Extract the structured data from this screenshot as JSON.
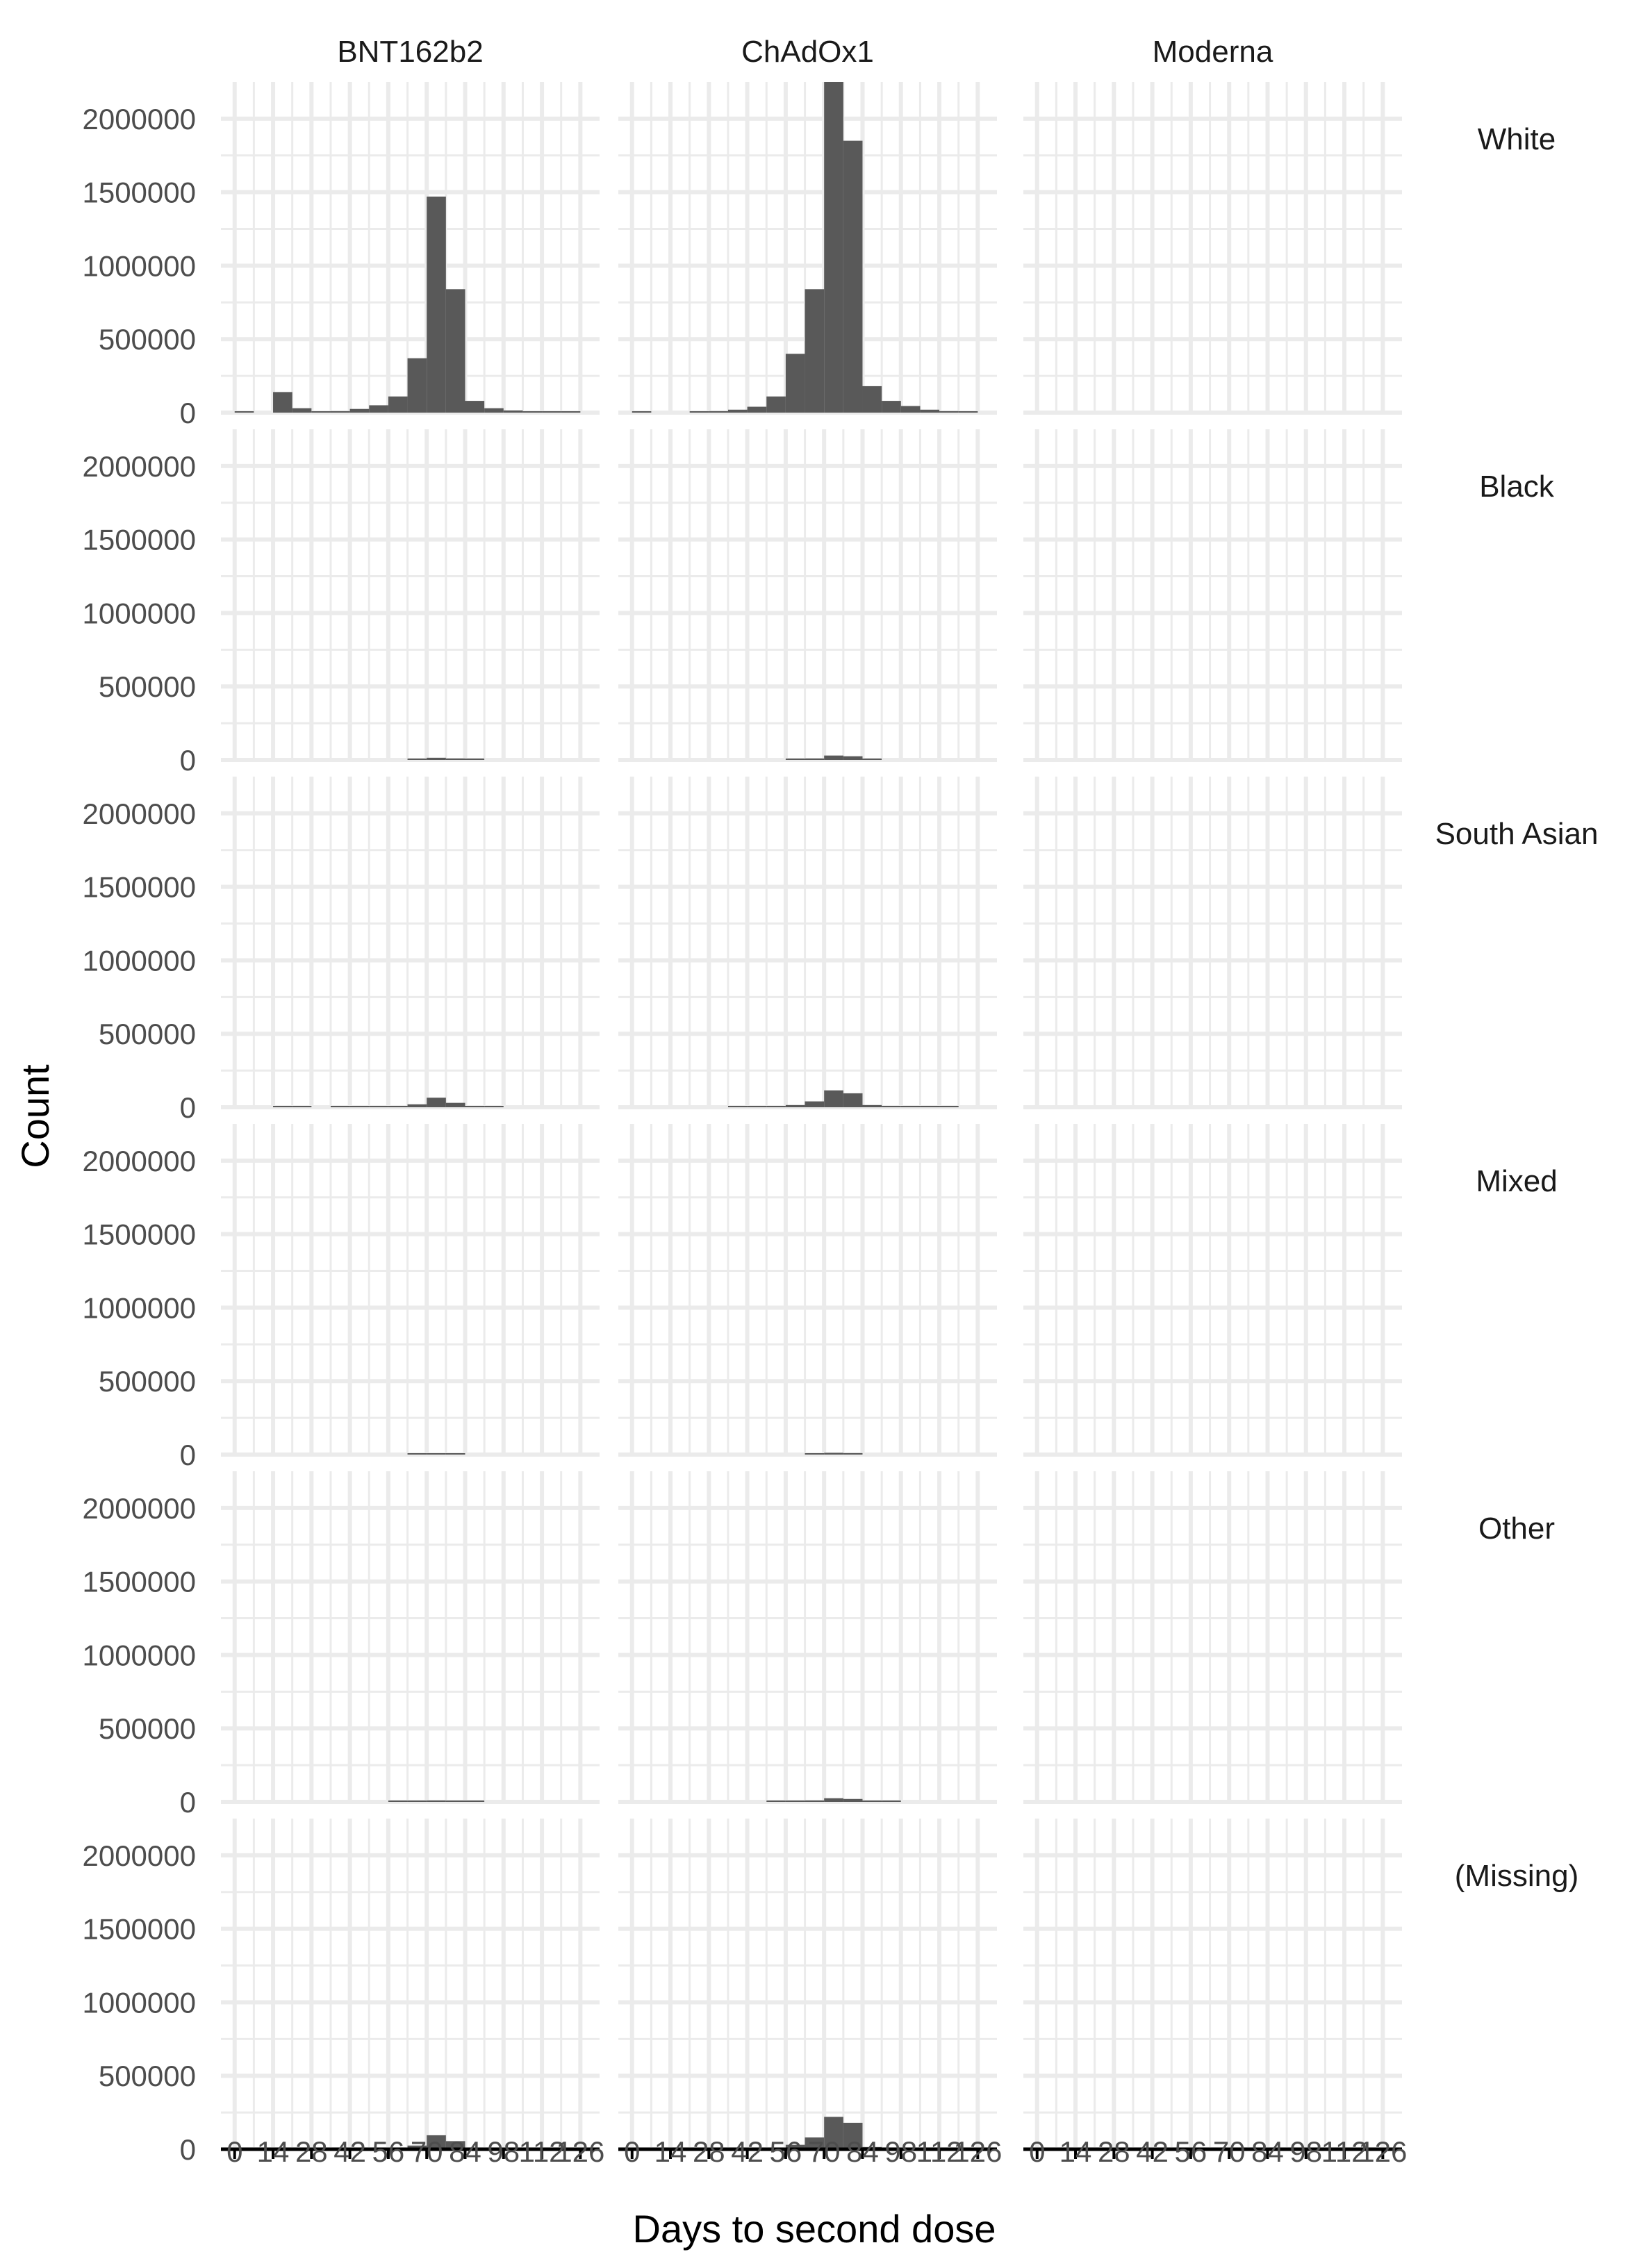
{
  "chart_data": {
    "type": "bar",
    "title": "",
    "xlabel": "Days to second dose",
    "ylabel": "Count",
    "ylim": [
      0,
      2250000
    ],
    "xlim": [
      -5,
      133
    ],
    "bin_width": 7,
    "x_ticks": [
      "0",
      "14",
      "28",
      "42",
      "56",
      "70",
      "84",
      "98",
      "112",
      "126"
    ],
    "y_ticks": [
      "0",
      "500000",
      "1000000",
      "1500000",
      "2000000"
    ],
    "grid": true,
    "colors": {
      "bar": "#595959",
      "grid": "#ebebeb",
      "axis": "#000000"
    },
    "columns": [
      "BNT162b2",
      "ChAdOx1",
      "Moderna"
    ],
    "rows": [
      "White",
      "Black",
      "South Asian",
      "Mixed",
      "Other",
      "(Missing)"
    ],
    "bin_starts": [
      0,
      7,
      14,
      21,
      28,
      35,
      42,
      49,
      56,
      63,
      70,
      77,
      84,
      91,
      98,
      105,
      112,
      119
    ],
    "panels": [
      {
        "row": "White",
        "column": "BNT162b2",
        "values": [
          3000,
          0,
          140000,
          30000,
          3000,
          10000,
          25000,
          50000,
          110000,
          370000,
          1470000,
          840000,
          80000,
          30000,
          15000,
          8000,
          5000,
          3000
        ]
      },
      {
        "row": "White",
        "column": "ChAdOx1",
        "values": [
          3000,
          0,
          0,
          3000,
          10000,
          20000,
          40000,
          110000,
          400000,
          840000,
          2250000,
          1850000,
          180000,
          80000,
          45000,
          20000,
          10000,
          5000
        ]
      },
      {
        "row": "White",
        "column": "Moderna",
        "values": []
      },
      {
        "row": "Black",
        "column": "BNT162b2",
        "values": [
          0,
          0,
          0,
          0,
          0,
          0,
          0,
          0,
          0,
          5000,
          15000,
          10000,
          1000,
          0,
          0,
          0,
          0,
          0
        ]
      },
      {
        "row": "Black",
        "column": "ChAdOx1",
        "values": [
          0,
          0,
          0,
          0,
          0,
          0,
          0,
          0,
          2000,
          10000,
          30000,
          25000,
          3000,
          0,
          0,
          0,
          0,
          0
        ]
      },
      {
        "row": "Black",
        "column": "Moderna",
        "values": []
      },
      {
        "row": "South Asian",
        "column": "BNT162b2",
        "values": [
          0,
          0,
          3000,
          2000,
          0,
          2000,
          2000,
          3000,
          5000,
          20000,
          65000,
          30000,
          3000,
          1000,
          0,
          0,
          0,
          0
        ]
      },
      {
        "row": "South Asian",
        "column": "ChAdOx1",
        "values": [
          0,
          0,
          0,
          0,
          0,
          2000,
          3000,
          5000,
          15000,
          40000,
          115000,
          95000,
          15000,
          5000,
          3000,
          2000,
          1000,
          0
        ]
      },
      {
        "row": "South Asian",
        "column": "Moderna",
        "values": []
      },
      {
        "row": "Mixed",
        "column": "BNT162b2",
        "values": [
          0,
          0,
          0,
          0,
          0,
          0,
          0,
          0,
          0,
          2000,
          5000,
          3000,
          0,
          0,
          0,
          0,
          0,
          0
        ]
      },
      {
        "row": "Mixed",
        "column": "ChAdOx1",
        "values": [
          0,
          0,
          0,
          0,
          0,
          0,
          0,
          0,
          0,
          3000,
          12000,
          10000,
          0,
          0,
          0,
          0,
          0,
          0
        ]
      },
      {
        "row": "Mixed",
        "column": "Moderna",
        "values": []
      },
      {
        "row": "Other",
        "column": "BNT162b2",
        "values": [
          0,
          0,
          0,
          0,
          0,
          0,
          0,
          0,
          1000,
          3000,
          10000,
          6000,
          1000,
          0,
          0,
          0,
          0,
          0
        ]
      },
      {
        "row": "Other",
        "column": "ChAdOx1",
        "values": [
          0,
          0,
          0,
          0,
          0,
          0,
          0,
          1000,
          3000,
          10000,
          25000,
          20000,
          3000,
          1000,
          0,
          0,
          0,
          0
        ]
      },
      {
        "row": "Other",
        "column": "Moderna",
        "values": []
      },
      {
        "row": "(Missing)",
        "column": "BNT162b2",
        "values": [
          0,
          0,
          0,
          0,
          0,
          0,
          0,
          2000,
          5000,
          25000,
          95000,
          55000,
          5000,
          1000,
          0,
          0,
          0,
          0
        ]
      },
      {
        "row": "(Missing)",
        "column": "ChAdOx1",
        "values": [
          0,
          0,
          0,
          0,
          0,
          0,
          1000,
          5000,
          30000,
          80000,
          220000,
          180000,
          15000,
          3000,
          1000,
          0,
          0,
          0
        ]
      },
      {
        "row": "(Missing)",
        "column": "Moderna",
        "values": []
      }
    ]
  }
}
